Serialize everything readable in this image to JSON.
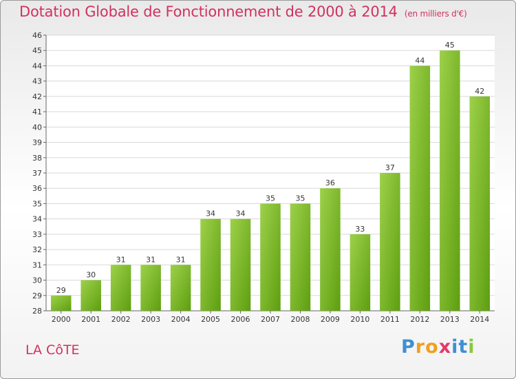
{
  "title": "Dotation Globale de Fonctionnement de 2000 à 2014",
  "subtitle": "(en milliers d'€)",
  "commune": "LA CôTE",
  "brand": {
    "letters": [
      "P",
      "r",
      "o",
      "x",
      "i",
      "t",
      "i"
    ],
    "colors": [
      "#3e8fd2",
      "#f0a020",
      "#f0a020",
      "#e23a6a",
      "#3e8fd2",
      "#3e8fd2",
      "#8cc63f"
    ]
  },
  "colors": {
    "title": "#d2315f",
    "bar_light": "#9dd14a",
    "bar_dark": "#5e9e10",
    "grid": "#d9d9d9"
  },
  "chart_data": {
    "type": "bar",
    "categories": [
      "2000",
      "2001",
      "2002",
      "2003",
      "2004",
      "2005",
      "2006",
      "2007",
      "2008",
      "2009",
      "2010",
      "2011",
      "2012",
      "2013",
      "2014"
    ],
    "values": [
      29,
      30,
      31,
      31,
      31,
      34,
      34,
      35,
      35,
      36,
      33,
      37,
      44,
      45,
      42
    ],
    "yticks": [
      "28",
      "29",
      "30",
      "31",
      "32",
      "33",
      "34",
      "35",
      "36",
      "37",
      "38",
      "39",
      "40",
      "41",
      "42",
      "43",
      "44",
      "45",
      "46"
    ],
    "ylim": [
      28,
      46
    ],
    "grid": true
  }
}
